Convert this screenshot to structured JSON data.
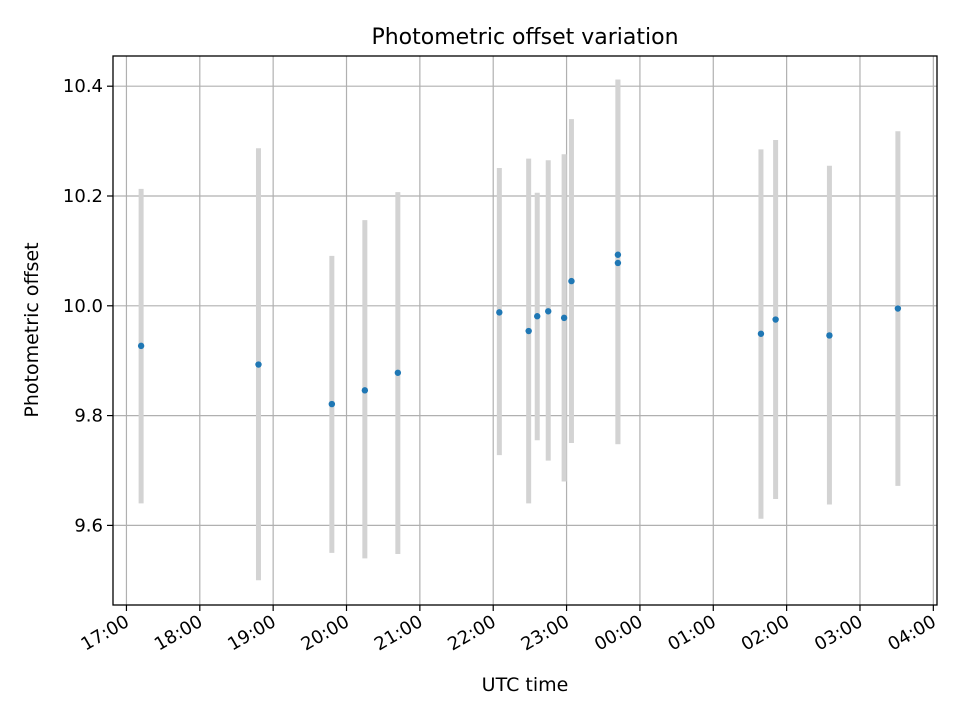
{
  "chart_data": {
    "type": "scatter",
    "title": "Photometric offset variation",
    "xlabel": "UTC time",
    "ylabel": "Photometric offset",
    "xlim": [
      "16:49",
      "04:03"
    ],
    "ylim": [
      9.455,
      10.455
    ],
    "x_ticks": [
      "17:00",
      "18:00",
      "19:00",
      "20:00",
      "21:00",
      "22:00",
      "23:00",
      "00:00",
      "01:00",
      "02:00",
      "03:00",
      "04:00"
    ],
    "y_ticks": [
      9.6,
      9.8,
      10.0,
      10.2,
      10.4
    ],
    "grid": true,
    "colors": {
      "point": "#1f77b4",
      "errorbar": "#d3d3d3",
      "grid": "#b0b0b0"
    },
    "points": [
      {
        "time": "17:12",
        "y": 9.927,
        "low": 9.64,
        "high": 10.213
      },
      {
        "time": "18:48",
        "y": 9.893,
        "low": 9.5,
        "high": 10.287
      },
      {
        "time": "19:48",
        "y": 9.821,
        "low": 9.55,
        "high": 10.091
      },
      {
        "time": "20:15",
        "y": 9.846,
        "low": 9.54,
        "high": 10.156
      },
      {
        "time": "20:42",
        "y": 9.878,
        "low": 9.548,
        "high": 10.207
      },
      {
        "time": "22:05",
        "y": 9.988,
        "low": 9.728,
        "high": 10.251
      },
      {
        "time": "22:29",
        "y": 9.954,
        "low": 9.64,
        "high": 10.268
      },
      {
        "time": "22:36",
        "y": 9.981,
        "low": 9.755,
        "high": 10.206
      },
      {
        "time": "22:45",
        "y": 9.99,
        "low": 9.718,
        "high": 10.265
      },
      {
        "time": "22:58",
        "y": 9.978,
        "low": 9.68,
        "high": 10.276
      },
      {
        "time": "23:04",
        "y": 10.045,
        "low": 9.75,
        "high": 10.34
      },
      {
        "time": "23:42",
        "y": 10.093,
        "low": 9.748,
        "high": 10.412
      },
      {
        "time": "23:42",
        "y": 10.078,
        "low": 9.748,
        "high": 10.412
      },
      {
        "time": "01:39",
        "y": 9.949,
        "low": 9.612,
        "high": 10.285
      },
      {
        "time": "01:51",
        "y": 9.975,
        "low": 9.648,
        "high": 10.302
      },
      {
        "time": "02:35",
        "y": 9.946,
        "low": 9.638,
        "high": 10.255
      },
      {
        "time": "03:31",
        "y": 9.995,
        "low": 9.672,
        "high": 10.318
      }
    ]
  }
}
